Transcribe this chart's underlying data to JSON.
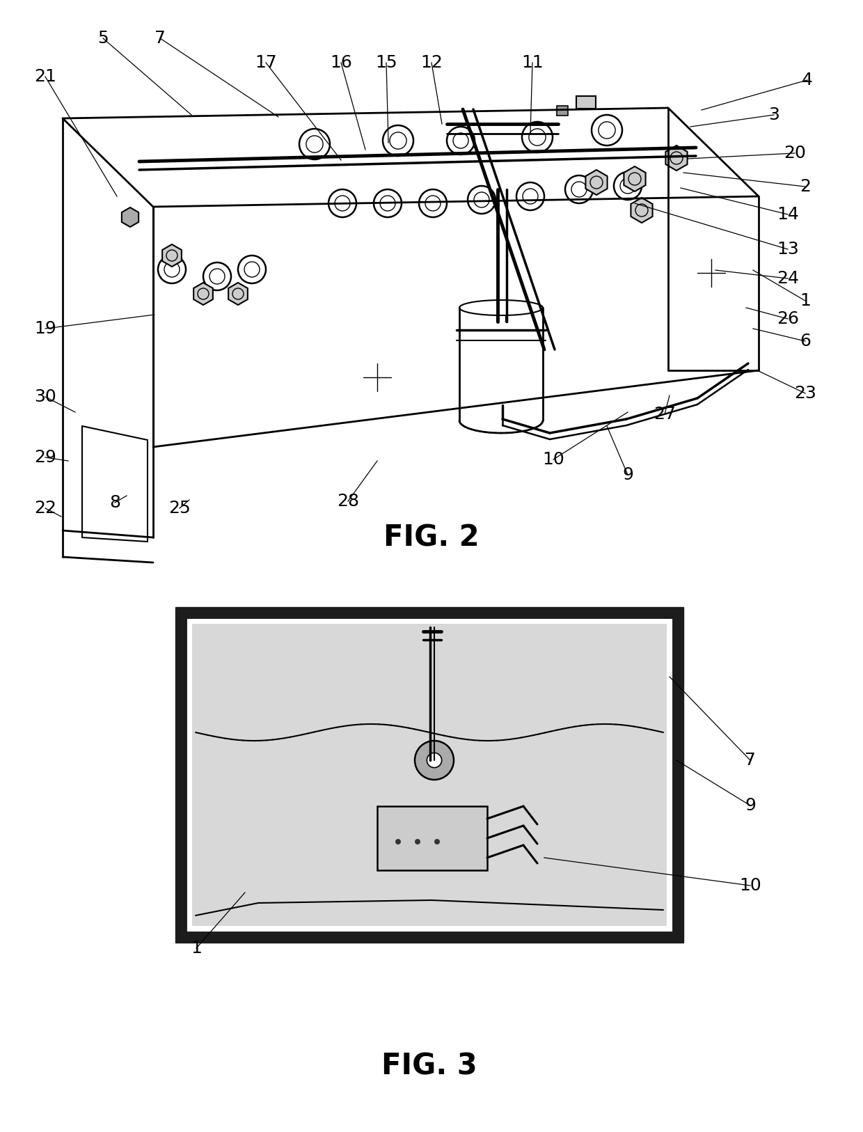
{
  "fig2_title": "FIG. 2",
  "fig3_title": "FIG. 3",
  "background_color": "#ffffff",
  "label_fontsize": 18,
  "title_fontsize": 30,
  "line_color": "#000000",
  "label_color": "#000000",
  "fig2_label_data": [
    [
      "5",
      148,
      55,
      275,
      165
    ],
    [
      "7",
      230,
      55,
      400,
      168
    ],
    [
      "17",
      382,
      90,
      490,
      230
    ],
    [
      "16",
      490,
      90,
      525,
      215
    ],
    [
      "15",
      555,
      90,
      558,
      205
    ],
    [
      "12",
      620,
      90,
      635,
      178
    ],
    [
      "11",
      765,
      90,
      762,
      192
    ],
    [
      "4",
      1160,
      115,
      1008,
      158
    ],
    [
      "3",
      1112,
      165,
      992,
      182
    ],
    [
      "20",
      1142,
      220,
      988,
      228
    ],
    [
      "2",
      1157,
      268,
      982,
      248
    ],
    [
      "14",
      1132,
      308,
      978,
      270
    ],
    [
      "13",
      1132,
      358,
      912,
      292
    ],
    [
      "24",
      1132,
      400,
      1028,
      388
    ],
    [
      "26",
      1132,
      458,
      1072,
      442
    ],
    [
      "1",
      1157,
      432,
      1082,
      388
    ],
    [
      "6",
      1157,
      490,
      1082,
      472
    ],
    [
      "23",
      1157,
      565,
      1088,
      532
    ],
    [
      "27",
      955,
      595,
      962,
      568
    ],
    [
      "10",
      795,
      660,
      902,
      592
    ],
    [
      "9",
      902,
      682,
      872,
      612
    ],
    [
      "21",
      65,
      110,
      168,
      282
    ],
    [
      "19",
      65,
      472,
      222,
      452
    ],
    [
      "30",
      65,
      570,
      108,
      592
    ],
    [
      "29",
      65,
      657,
      98,
      662
    ],
    [
      "22",
      65,
      730,
      88,
      742
    ],
    [
      "8",
      165,
      722,
      182,
      712
    ],
    [
      "25",
      258,
      730,
      272,
      718
    ],
    [
      "28",
      500,
      720,
      542,
      662
    ]
  ],
  "fig3_label_data": [
    [
      "1",
      282,
      1362,
      352,
      1282
    ],
    [
      "7",
      1078,
      1092,
      962,
      972
    ],
    [
      "9",
      1078,
      1157,
      972,
      1092
    ],
    [
      "10",
      1078,
      1272,
      782,
      1232
    ]
  ]
}
